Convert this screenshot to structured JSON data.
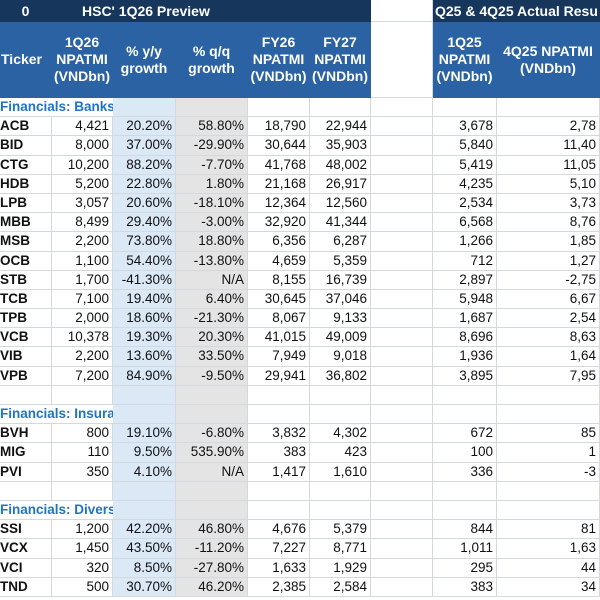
{
  "sheet": {
    "corner_value": "0",
    "title_preview": "HSC' 1Q26 Preview",
    "title_actual": "Q25 & 4Q25 Actual Resu",
    "colors": {
      "title_bg": "#16365c",
      "header_bg": "#2b62a3",
      "section_text": "#1f73c6",
      "yy_col_bg": "#dbe8f6",
      "qq_col_bg": "#e4e4e4"
    },
    "headers": [
      "Ticker",
      "1Q26\nNPATMI\n(VNDbn)",
      "% y/y\ngrowth",
      "% q/q\ngrowth",
      "FY26\nNPATMI\n(VNDbn)",
      "FY27\nNPATMI\n(VNDbn)",
      "",
      "1Q25\nNPATMI\n(VNDbn)",
      "4Q25 NPATMI\n(VNDbn)"
    ],
    "sections": [
      {
        "title": "Financials: Banks",
        "rows": [
          [
            "ACB",
            "4,421",
            "20.20%",
            "58.80%",
            "18,790",
            "22,944",
            "3,678",
            "2,78"
          ],
          [
            "BID",
            "8,000",
            "37.00%",
            "-29.90%",
            "30,644",
            "35,903",
            "5,840",
            "11,40"
          ],
          [
            "CTG",
            "10,200",
            "88.20%",
            "-7.70%",
            "41,768",
            "48,002",
            "5,419",
            "11,05"
          ],
          [
            "HDB",
            "5,200",
            "22.80%",
            "1.80%",
            "21,168",
            "26,917",
            "4,235",
            "5,10"
          ],
          [
            "LPB",
            "3,057",
            "20.60%",
            "-18.10%",
            "12,364",
            "12,560",
            "2,534",
            "3,73"
          ],
          [
            "MBB",
            "8,499",
            "29.40%",
            "-3.00%",
            "32,920",
            "41,344",
            "6,568",
            "8,76"
          ],
          [
            "MSB",
            "2,200",
            "73.80%",
            "18.80%",
            "6,356",
            "6,287",
            "1,266",
            "1,85"
          ],
          [
            "OCB",
            "1,100",
            "54.40%",
            "-13.80%",
            "4,659",
            "5,359",
            "712",
            "1,27"
          ],
          [
            "STB",
            "1,700",
            "-41.30%",
            "N/A",
            "8,155",
            "16,739",
            "2,897",
            "-2,75"
          ],
          [
            "TCB",
            "7,100",
            "19.40%",
            "6.40%",
            "30,645",
            "37,046",
            "5,948",
            "6,67"
          ],
          [
            "TPB",
            "2,000",
            "18.60%",
            "-21.30%",
            "8,067",
            "9,133",
            "1,687",
            "2,54"
          ],
          [
            "VCB",
            "10,378",
            "19.30%",
            "20.30%",
            "41,015",
            "49,009",
            "8,696",
            "8,63"
          ],
          [
            "VIB",
            "2,200",
            "13.60%",
            "33.50%",
            "7,949",
            "9,018",
            "1,936",
            "1,64"
          ],
          [
            "VPB",
            "7,200",
            "84.90%",
            "-9.50%",
            "29,941",
            "36,802",
            "3,895",
            "7,95"
          ]
        ]
      },
      {
        "title": "Financials: Insurance",
        "rows": [
          [
            "BVH",
            "800",
            "19.10%",
            "-6.80%",
            "3,832",
            "4,302",
            "672",
            "85"
          ],
          [
            "MIG",
            "110",
            "9.50%",
            "535.90%",
            "383",
            "423",
            "100",
            "1"
          ],
          [
            "PVI",
            "350",
            "4.10%",
            "N/A",
            "1,417",
            "1,610",
            "336",
            "-3"
          ]
        ]
      },
      {
        "title": "Financials: Diversified Financials",
        "rows": [
          [
            "SSI",
            "1,200",
            "42.20%",
            "46.80%",
            "4,676",
            "5,379",
            "844",
            "81"
          ],
          [
            "VCX",
            "1,450",
            "43.50%",
            "-11.20%",
            "7,227",
            "8,771",
            "1,011",
            "1,63"
          ],
          [
            "VCI",
            "320",
            "8.50%",
            "-27.80%",
            "1,633",
            "1,929",
            "295",
            "44"
          ],
          [
            "TND",
            "500",
            "30.70%",
            "46.20%",
            "2,385",
            "2,584",
            "383",
            "34"
          ]
        ]
      }
    ]
  }
}
